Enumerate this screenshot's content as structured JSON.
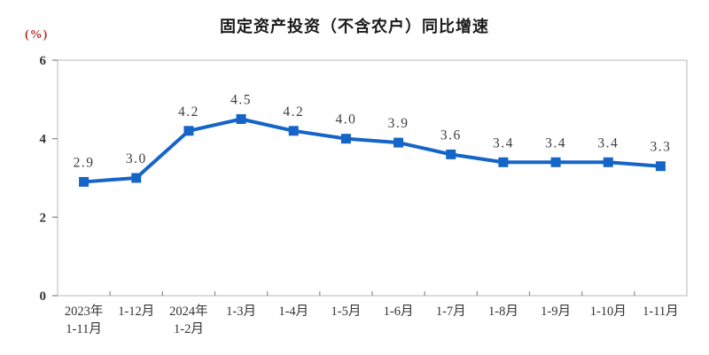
{
  "chart_data": {
    "type": "line",
    "title": "固定资产投资（不含农户）同比增速",
    "unit_label": "(%)",
    "categories": [
      "2023年\n1-11月",
      "1-12月",
      "2024年\n1-2月",
      "1-3月",
      "1-4月",
      "1-5月",
      "1-6月",
      "1-7月",
      "1-8月",
      "1-9月",
      "1-10月",
      "1-11月"
    ],
    "values": [
      2.9,
      3.0,
      4.2,
      4.5,
      4.2,
      4.0,
      3.9,
      3.6,
      3.4,
      3.4,
      3.4,
      3.3
    ],
    "point_labels": [
      "2.9",
      "3.0",
      "4.2",
      "4.5",
      "4.2",
      "4.0",
      "3.9",
      "3.6",
      "3.4",
      "3.4",
      "3.4",
      "3.3"
    ],
    "xlabel": "",
    "ylabel": "(%)",
    "ylim": [
      0,
      6
    ],
    "yticks": [
      0,
      2,
      4,
      6
    ],
    "grid": false,
    "legend": "none",
    "marker": "square",
    "colors": {
      "line": "#1565c8",
      "point_label": "#3d3d3d",
      "axis_border": "#c9c9c9",
      "tick": "#8c8c8c",
      "tick_label": "#333333",
      "unit_label": "#b0342b",
      "title": "#1a1a1a"
    }
  }
}
